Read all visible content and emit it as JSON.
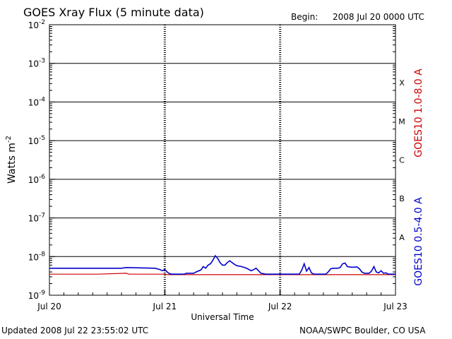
{
  "header": {
    "title": "GOES Xray Flux (5 minute data)",
    "begin_label": "Begin:",
    "begin_value": "2008 Jul 20 0000 UTC"
  },
  "footer": {
    "updated": "Updated 2008 Jul 22 23:55:02 UTC",
    "credit": "NOAA/SWPC Boulder, CO USA"
  },
  "chart_data": {
    "type": "line",
    "title": "GOES Xray Flux (5 minute data)",
    "xlabel": "Universal Time",
    "ylabel": "Watts m",
    "ylabel_superscript": "-2",
    "x_unit": "hours since 2008 Jul 20 0000 UTC",
    "xlim": [
      0,
      72
    ],
    "yscale": "log",
    "ylim": [
      1e-09,
      0.01
    ],
    "x_ticks": [
      {
        "x": 0,
        "label": "Jul 20"
      },
      {
        "x": 24,
        "label": "Jul 21"
      },
      {
        "x": 48,
        "label": "Jul 22"
      },
      {
        "x": 72,
        "label": "Jul 23"
      }
    ],
    "y_ticks": [
      {
        "exp": -9,
        "base": "10",
        "sup": "-9"
      },
      {
        "exp": -8,
        "base": "10",
        "sup": "-8"
      },
      {
        "exp": -7,
        "base": "10",
        "sup": "-7"
      },
      {
        "exp": -6,
        "base": "10",
        "sup": "-6"
      },
      {
        "exp": -5,
        "base": "10",
        "sup": "-5"
      },
      {
        "exp": -4,
        "base": "10",
        "sup": "-4"
      },
      {
        "exp": -3,
        "base": "10",
        "sup": "-3"
      },
      {
        "exp": -2,
        "base": "10",
        "sup": "-2"
      }
    ],
    "flare_classes": [
      {
        "label": "A",
        "exp": -7.5
      },
      {
        "label": "B",
        "exp": -6.5
      },
      {
        "label": "C",
        "exp": -5.5
      },
      {
        "label": "M",
        "exp": -4.5
      },
      {
        "label": "X",
        "exp": -3.5
      }
    ],
    "grid": "horizontal lines at each decade from 1e-8 to 1e-3; dotted vertical lines at day boundaries",
    "legend_position": "right",
    "series": [
      {
        "name": "GOES10 1.0-8.0 A",
        "color": "#cc0000",
        "points": [
          [
            0,
            3.5e-09
          ],
          [
            10,
            3.5e-09
          ],
          [
            16,
            3.7e-09
          ],
          [
            16.5,
            3.5e-09
          ],
          [
            23,
            3.5e-09
          ],
          [
            24,
            3.5e-09
          ],
          [
            24.5,
            3.4e-09
          ],
          [
            72,
            3.4e-09
          ]
        ]
      },
      {
        "name": "GOES10 0.5-4.0 A",
        "color": "#0000cc",
        "points": [
          [
            0,
            5e-09
          ],
          [
            15,
            5e-09
          ],
          [
            16,
            5.2e-09
          ],
          [
            22,
            5e-09
          ],
          [
            23,
            4.6e-09
          ],
          [
            23.5,
            4.3e-09
          ],
          [
            24,
            4.6e-09
          ],
          [
            24.5,
            4e-09
          ],
          [
            25,
            3.6e-09
          ],
          [
            25.5,
            3.5e-09
          ],
          [
            28,
            3.5e-09
          ],
          [
            28.5,
            3.7e-09
          ],
          [
            30,
            3.7e-09
          ],
          [
            30.5,
            4e-09
          ],
          [
            31.5,
            4.5e-09
          ],
          [
            32,
            5.5e-09
          ],
          [
            32.5,
            5e-09
          ],
          [
            33,
            6e-09
          ],
          [
            33.5,
            6.5e-09
          ],
          [
            34,
            8e-09
          ],
          [
            34.5,
            1.05e-08
          ],
          [
            35,
            9e-09
          ],
          [
            35.5,
            7e-09
          ],
          [
            36,
            6e-09
          ],
          [
            36.5,
            6e-09
          ],
          [
            37,
            7e-09
          ],
          [
            37.5,
            7.8e-09
          ],
          [
            38,
            7e-09
          ],
          [
            38.5,
            6.3e-09
          ],
          [
            39,
            5.8e-09
          ],
          [
            40,
            5.5e-09
          ],
          [
            41,
            5e-09
          ],
          [
            42,
            4.3e-09
          ],
          [
            42.5,
            4.6e-09
          ],
          [
            43,
            5e-09
          ],
          [
            43.5,
            4.3e-09
          ],
          [
            44,
            3.7e-09
          ],
          [
            45,
            3.5e-09
          ],
          [
            47.5,
            3.5e-09
          ],
          [
            52,
            3.5e-09
          ],
          [
            52.5,
            4.5e-09
          ],
          [
            53,
            6.5e-09
          ],
          [
            53.5,
            4.2e-09
          ],
          [
            54,
            5.2e-09
          ],
          [
            54.5,
            3.8e-09
          ],
          [
            55,
            3.5e-09
          ],
          [
            57.5,
            3.5e-09
          ],
          [
            58,
            4e-09
          ],
          [
            58.5,
            4.8e-09
          ],
          [
            59,
            5e-09
          ],
          [
            60,
            5e-09
          ],
          [
            60.5,
            5.2e-09
          ],
          [
            61,
            6.5e-09
          ],
          [
            61.5,
            6.8e-09
          ],
          [
            62,
            5.5e-09
          ],
          [
            63,
            5.3e-09
          ],
          [
            64,
            5.4e-09
          ],
          [
            64.5,
            4.8e-09
          ],
          [
            65,
            4e-09
          ],
          [
            65.5,
            3.7e-09
          ],
          [
            66.5,
            3.7e-09
          ],
          [
            67,
            4.2e-09
          ],
          [
            67.5,
            5.5e-09
          ],
          [
            68,
            4e-09
          ],
          [
            68.5,
            3.8e-09
          ],
          [
            69,
            4.3e-09
          ],
          [
            69.5,
            3.7e-09
          ],
          [
            70,
            3.8e-09
          ],
          [
            70.5,
            3.5e-09
          ],
          [
            72,
            3.5e-09
          ]
        ]
      }
    ]
  }
}
